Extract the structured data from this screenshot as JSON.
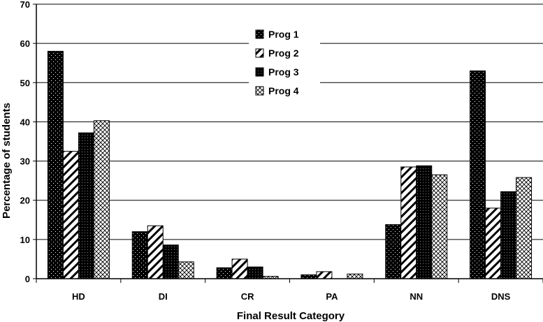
{
  "chart_data": {
    "type": "bar",
    "title": "",
    "xlabel": "Final Result Category",
    "ylabel": "Percentage of students",
    "ylim": [
      0,
      70
    ],
    "yticks": [
      0,
      10,
      20,
      30,
      40,
      50,
      60,
      70
    ],
    "grid": true,
    "legend_position": "top-center",
    "categories": [
      "HD",
      "DI",
      "CR",
      "PA",
      "NN",
      "DNS"
    ],
    "series": [
      {
        "name": "Prog 1",
        "pattern": "dotted-black",
        "values": [
          58,
          12,
          2.8,
          1,
          13.8,
          53
        ]
      },
      {
        "name": "Prog 2",
        "pattern": "diagonal-hatch",
        "values": [
          32.5,
          13.5,
          5,
          1.8,
          28.5,
          18
        ]
      },
      {
        "name": "Prog 3",
        "pattern": "dense-grid",
        "values": [
          37.2,
          8.6,
          3,
          0,
          28.8,
          22.2
        ]
      },
      {
        "name": "Prog 4",
        "pattern": "light-crosshatch",
        "values": [
          40.3,
          4.3,
          0.6,
          1.2,
          26.5,
          25.8
        ]
      }
    ],
    "colors": {
      "background": "#ffffff",
      "ink": "#000000"
    }
  }
}
